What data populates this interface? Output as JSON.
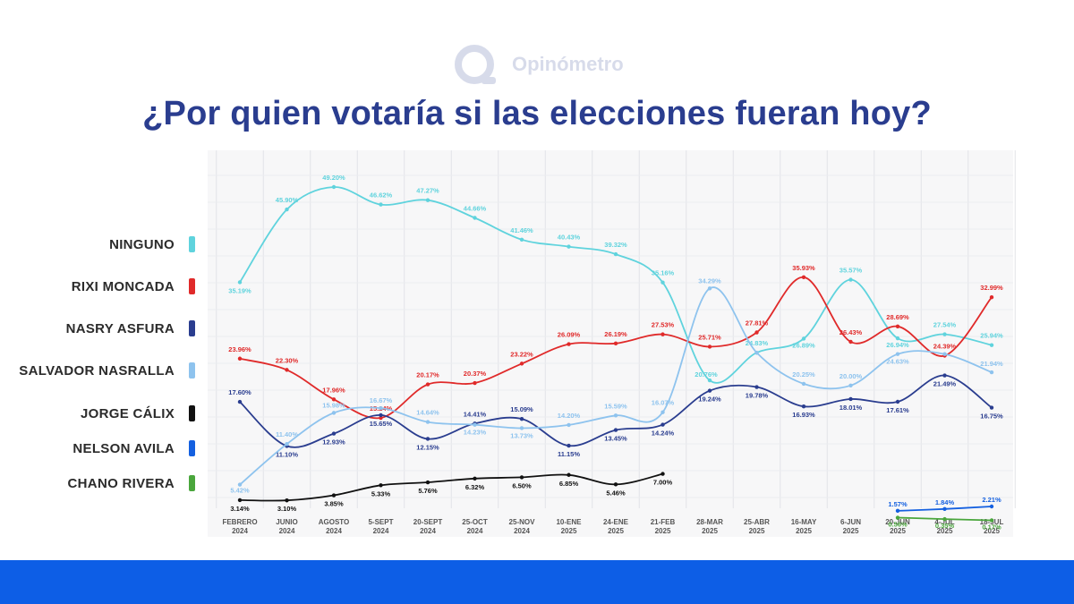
{
  "logo": {
    "text": "Opinómetro"
  },
  "title": "¿Por quien votaría si las elecciones fueran hoy?",
  "chart_data": {
    "type": "line",
    "title": "¿Por quien votaría si las elecciones fueran hoy?",
    "categories": [
      [
        "FEBRERO",
        "2024"
      ],
      [
        "JUNIO",
        "2024"
      ],
      [
        "AGOSTO",
        "2024"
      ],
      [
        "5-SEPT",
        "2024"
      ],
      [
        "20-SEPT",
        "2024"
      ],
      [
        "25-OCT",
        "2024"
      ],
      [
        "25-NOV",
        "2024"
      ],
      [
        "10-ENE",
        "2025"
      ],
      [
        "24-ENE",
        "2025"
      ],
      [
        "21-FEB",
        "2025"
      ],
      [
        "28-MAR",
        "2025"
      ],
      [
        "25-ABR",
        "2025"
      ],
      [
        "16-MAY",
        "2025"
      ],
      [
        "6-JUN",
        "2025"
      ],
      [
        "20-JUN",
        "2025"
      ],
      [
        "4-JUL",
        "2025"
      ],
      [
        "18-JUL",
        "2025"
      ]
    ],
    "ylim": [
      0,
      55
    ],
    "grid": true,
    "series": [
      {
        "name": "NINGUNO",
        "color": "#5fd3dd",
        "values": [
          35.19,
          45.9,
          49.2,
          46.62,
          47.27,
          44.66,
          41.46,
          40.43,
          39.32,
          35.16,
          20.76,
          24.83,
          26.89,
          35.57,
          26.94,
          27.54,
          25.94
        ],
        "labels": [
          "35.19%",
          "45.90%",
          "49.20%",
          "46.62%",
          "47.27%",
          "44.66%",
          "41.46%",
          "40.43%",
          "39.32%",
          "35.16%",
          "20.76%",
          "24.83%",
          "26.89%",
          "35.57%",
          "26.94%",
          "27.54%",
          "25.94%"
        ]
      },
      {
        "name": "RIXI MONCADA",
        "color": "#e02a2a",
        "values": [
          23.96,
          22.3,
          17.96,
          15.24,
          20.17,
          20.37,
          23.22,
          26.09,
          26.19,
          27.53,
          25.71,
          27.81,
          35.93,
          26.43,
          28.69,
          24.39,
          32.99
        ],
        "labels": [
          "23.96%",
          "22.30%",
          "17.96%",
          "15.24%",
          "20.17%",
          "20.37%",
          "23.22%",
          "26.09%",
          "26.19%",
          "27.53%",
          "25.71%",
          "27.81%",
          "35.93%",
          "26.43%",
          "28.69%",
          "24.39%",
          "32.99%"
        ]
      },
      {
        "name": "NASRY ASFURA",
        "color": "#2a3d8f",
        "values": [
          17.6,
          11.1,
          12.93,
          15.65,
          12.15,
          14.41,
          15.09,
          11.15,
          13.45,
          14.24,
          19.24,
          19.78,
          16.93,
          18.01,
          17.61,
          21.49,
          16.75
        ],
        "labels": [
          "17.60%",
          "11.10%",
          "12.93%",
          "15.65%",
          "12.15%",
          "14.41%",
          "15.09%",
          "11.15%",
          "13.45%",
          "14.24%",
          "19.24%",
          "19.78%",
          "16.93%",
          "18.01%",
          "17.61%",
          "21.49%",
          "16.75%"
        ]
      },
      {
        "name": "SALVADOR NASRALLA",
        "color": "#8ec3ee",
        "values": [
          5.42,
          11.4,
          15.98,
          16.67,
          14.64,
          14.23,
          13.73,
          14.2,
          15.59,
          16.07,
          34.29,
          24.83,
          20.25,
          20.0,
          24.63,
          24.63,
          21.94
        ],
        "labels": [
          "5.42%",
          "11.40%",
          "15.98%",
          "16.67%",
          "14.64%",
          "14.23%",
          "13.73%",
          "14.20%",
          "15.59%",
          "16.07%",
          "34.29%",
          "",
          "20.25%",
          "20.00%",
          "24.63%",
          "",
          "21.94%"
        ]
      },
      {
        "name": "JORGE CÁLIX",
        "color": "#111111",
        "values": [
          3.14,
          3.1,
          3.85,
          5.33,
          5.76,
          6.32,
          6.5,
          6.85,
          5.46,
          7.0,
          null,
          null,
          null,
          null,
          null,
          null,
          null
        ],
        "labels": [
          "3.14%",
          "3.10%",
          "3.85%",
          "5.33%",
          "5.76%",
          "6.32%",
          "6.50%",
          "6.85%",
          "5.46%",
          "7.00%",
          "",
          "",
          "",
          "",
          "",
          "",
          ""
        ]
      },
      {
        "name": "NELSON AVILA",
        "color": "#1460e0",
        "values": [
          null,
          null,
          null,
          null,
          null,
          null,
          null,
          null,
          null,
          null,
          null,
          null,
          null,
          null,
          1.57,
          1.84,
          2.21
        ],
        "labels": [
          "",
          "",
          "",
          "",
          "",
          "",
          "",
          "",
          "",
          "",
          "",
          "",
          "",
          "",
          "1.57%",
          "1.84%",
          "2.21%"
        ]
      },
      {
        "name": "CHANO RIVERA",
        "color": "#4aa63c",
        "values": [
          null,
          null,
          null,
          null,
          null,
          null,
          null,
          null,
          null,
          null,
          null,
          null,
          null,
          null,
          0.56,
          0.35,
          0.17
        ],
        "labels": [
          "",
          "",
          "",
          "",
          "",
          "",
          "",
          "",
          "",
          "",
          "",
          "",
          "",
          "",
          "0.56%",
          "0.35%",
          "0.17%"
        ]
      }
    ]
  }
}
